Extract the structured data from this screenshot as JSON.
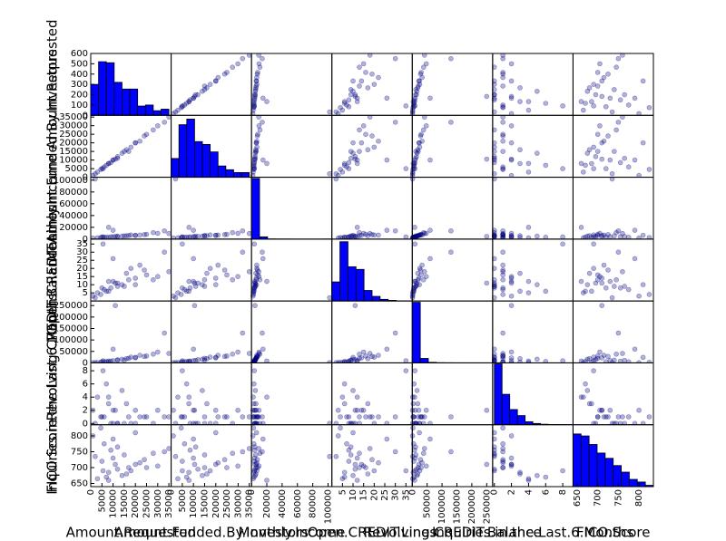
{
  "chart_data": {
    "type": "scatter_matrix",
    "point_color": "#000080",
    "bar_color": "#0000ff",
    "hist_yticks": [
      0,
      100,
      200,
      300,
      400,
      500,
      600
    ],
    "variables": [
      {
        "name": "Amount.Requested",
        "lim": [
          0,
          36000
        ],
        "ticks": [
          0,
          5000,
          10000,
          15000,
          20000,
          25000,
          30000,
          35000
        ],
        "bins": [
          0,
          3500,
          7000,
          10500,
          14000,
          17500,
          21000,
          24500,
          28000,
          31500,
          35000
        ],
        "counts": [
          300,
          520,
          510,
          320,
          255,
          255,
          90,
          100,
          45,
          60
        ],
        "count_lim": [
          0,
          600
        ]
      },
      {
        "name": "Amount.Funded.By.Investors",
        "lim": [
          0,
          36000
        ],
        "ticks": [
          0,
          5000,
          10000,
          15000,
          20000,
          25000,
          30000,
          35000
        ],
        "bins": [
          0,
          3500,
          7000,
          10500,
          14000,
          17500,
          21000,
          24500,
          28000,
          31500,
          35000
        ],
        "counts": [
          200,
          560,
          620,
          380,
          350,
          270,
          120,
          80,
          50,
          50
        ],
        "count_lim": [
          0,
          660
        ]
      },
      {
        "name": "Monthly.Income",
        "lim": [
          0,
          105000
        ],
        "ticks": [
          0,
          20000,
          40000,
          60000,
          80000,
          100000
        ],
        "bins": [
          0,
          10500,
          21000,
          31500,
          42000,
          52500,
          63000,
          73500,
          84000,
          94500,
          105000
        ],
        "counts": [
          2400,
          90,
          5,
          2,
          1,
          0,
          0,
          0,
          0,
          2
        ],
        "count_lim": [
          0,
          2450
        ]
      },
      {
        "name": "Open.CREDIT.Lines",
        "lim": [
          0,
          38
        ],
        "ticks": [
          5,
          10,
          15,
          20,
          25,
          30,
          35
        ],
        "bins": [
          0,
          3.8,
          7.6,
          11.4,
          15.2,
          19,
          22.8,
          26.6,
          30.4,
          34.2,
          38
        ],
        "counts": [
          290,
          900,
          520,
          480,
          160,
          70,
          25,
          10,
          3,
          2
        ],
        "count_lim": [
          0,
          940
        ]
      },
      {
        "name": "Revolving.CREDIT.Balance",
        "lim": [
          0,
          270000
        ],
        "ticks": [
          0,
          50000,
          100000,
          150000,
          200000,
          250000
        ],
        "bins": [
          0,
          27000,
          54000,
          81000,
          108000,
          135000,
          162000,
          189000,
          216000,
          243000,
          270000
        ],
        "counts": [
          2300,
          170,
          20,
          5,
          3,
          1,
          1,
          0,
          0,
          1
        ],
        "count_lim": [
          0,
          2350
        ]
      },
      {
        "name": "Inquiries.in.the.Last.6.Months",
        "lim": [
          -0.2,
          9.2
        ],
        "ticks": [
          0,
          2,
          4,
          6,
          8
        ],
        "bins": [
          0,
          0.9,
          1.8,
          2.7,
          3.6,
          4.5,
          5.4,
          6.3,
          7.2,
          8.1,
          9
        ],
        "counts": [
          1200,
          600,
          300,
          180,
          60,
          25,
          10,
          5,
          3,
          2
        ],
        "count_lim": [
          0,
          1220
        ]
      },
      {
        "name": "FICO.Score",
        "lim": [
          640,
          835
        ],
        "ticks": [
          650,
          700,
          750,
          800
        ],
        "bins": [
          640,
          659.5,
          679,
          698.5,
          718,
          737.5,
          757,
          776.5,
          796,
          815.5,
          835
        ],
        "counts": [
          400,
          385,
          320,
          255,
          215,
          160,
          110,
          55,
          35,
          10
        ],
        "count_lim": [
          0,
          470
        ]
      }
    ],
    "records": [
      [
        5000,
        5000,
        3500,
        8,
        5200,
        1,
        720
      ],
      [
        12000,
        12000,
        4800,
        11,
        14000,
        0,
        695
      ],
      [
        20000,
        19975,
        6200,
        14,
        22000,
        2,
        710
      ],
      [
        35000,
        35000,
        9500,
        18,
        41000,
        1,
        760
      ],
      [
        8000,
        7950,
        2900,
        6,
        3100,
        3,
        685
      ],
      [
        15000,
        15000,
        5400,
        9,
        12000,
        0,
        740
      ],
      [
        25000,
        24950,
        8100,
        16,
        30000,
        1,
        700
      ],
      [
        3000,
        3000,
        2200,
        5,
        1500,
        4,
        665
      ],
      [
        10000,
        9975,
        4100,
        12,
        9800,
        2,
        730
      ],
      [
        18000,
        17500,
        7000,
        20,
        25000,
        0,
        690
      ],
      [
        6000,
        6000,
        3100,
        7,
        4700,
        1,
        775
      ],
      [
        28000,
        27500,
        11000,
        13,
        38000,
        0,
        745
      ],
      [
        1000,
        1000,
        1800,
        3,
        800,
        2,
        800
      ],
      [
        14000,
        13950,
        5000,
        10,
        16000,
        5,
        675
      ],
      [
        22000,
        21000,
        6800,
        22,
        33000,
        1,
        715
      ],
      [
        9000,
        8500,
        3900,
        8,
        7600,
        0,
        755
      ],
      [
        30000,
        29900,
        9800,
        15,
        47000,
        2,
        705
      ],
      [
        4500,
        4500,
        2600,
        4,
        2300,
        1,
        825
      ],
      [
        16000,
        16000,
        5700,
        17,
        18500,
        3,
        680
      ],
      [
        12000,
        11000,
        4300,
        9,
        11000,
        0,
        765
      ],
      [
        7000,
        6950,
        3300,
        6,
        6000,
        6,
        670
      ],
      [
        24000,
        24000,
        7600,
        19,
        28000,
        1,
        725
      ],
      [
        2000,
        2000,
        102000,
        2,
        1200,
        0,
        735
      ],
      [
        10000,
        10000,
        15000,
        26,
        60000,
        0,
        790
      ],
      [
        33000,
        32000,
        14000,
        30,
        130000,
        1,
        750
      ],
      [
        11000,
        10500,
        4600,
        11,
        250000,
        2,
        710
      ],
      [
        5500,
        5000,
        3700,
        35,
        9000,
        8,
        690
      ],
      [
        17000,
        15000,
        6100,
        13,
        20000,
        1,
        700
      ],
      [
        20000,
        20000,
        6500,
        10,
        24000,
        0,
        810
      ],
      [
        8000,
        8000,
        20000,
        12,
        8000,
        4,
        660
      ]
    ]
  }
}
